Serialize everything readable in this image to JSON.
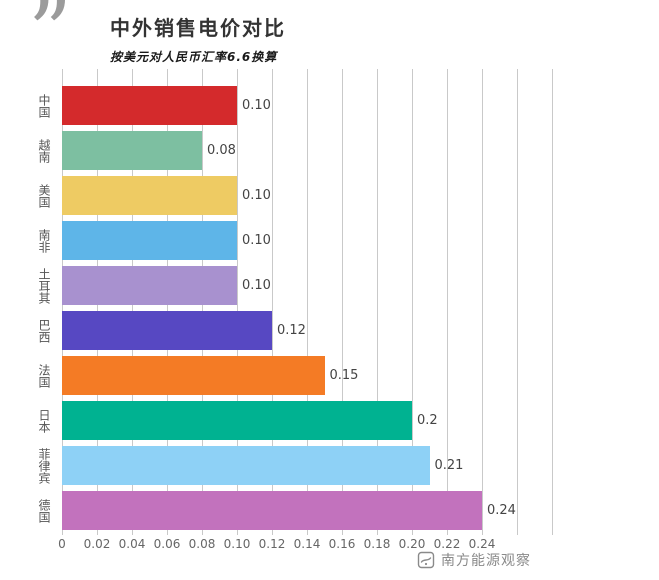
{
  "header": {
    "quote_icon": "”",
    "title": "中外销售电价对比",
    "subtitle": "按美元对人民币汇率6.6换算"
  },
  "chart_data": {
    "type": "bar",
    "orientation": "horizontal",
    "title": "中外销售电价对比",
    "subtitle": "按美元对人民币汇率6.6换算",
    "categories": [
      "中国",
      "越南",
      "美国",
      "南非",
      "土耳其",
      "巴西",
      "法国",
      "日本",
      "菲律宾",
      "德国"
    ],
    "values": [
      0.1,
      0.08,
      0.1,
      0.1,
      0.1,
      0.12,
      0.15,
      0.2,
      0.21,
      0.24
    ],
    "value_labels": [
      "0.10",
      "0.08",
      "0.10",
      "0.10",
      "0.10",
      "0.12",
      "0.15",
      "0.2",
      "0.21",
      "0.24"
    ],
    "bar_colors": [
      "#d42a2c",
      "#7dbfa1",
      "#eecb63",
      "#5eb5e8",
      "#a891cf",
      "#5748c2",
      "#f47b25",
      "#00b291",
      "#8ed1f6",
      "#c272bd"
    ],
    "x_ticks": [
      "0",
      "0.02",
      "0.04",
      "0.06",
      "0.08",
      "0.10",
      "0.12",
      "0.14",
      "0.16",
      "0.18",
      "0.20",
      "0.22",
      "0.24"
    ],
    "xlim": [
      0,
      0.28
    ],
    "grid_step": 0.02,
    "grid": "vertical",
    "gridline_color": "#c9c9c9"
  },
  "footer": {
    "source_label": "南方能源观察",
    "logo_icon": "southern-energy-observer-logo"
  }
}
